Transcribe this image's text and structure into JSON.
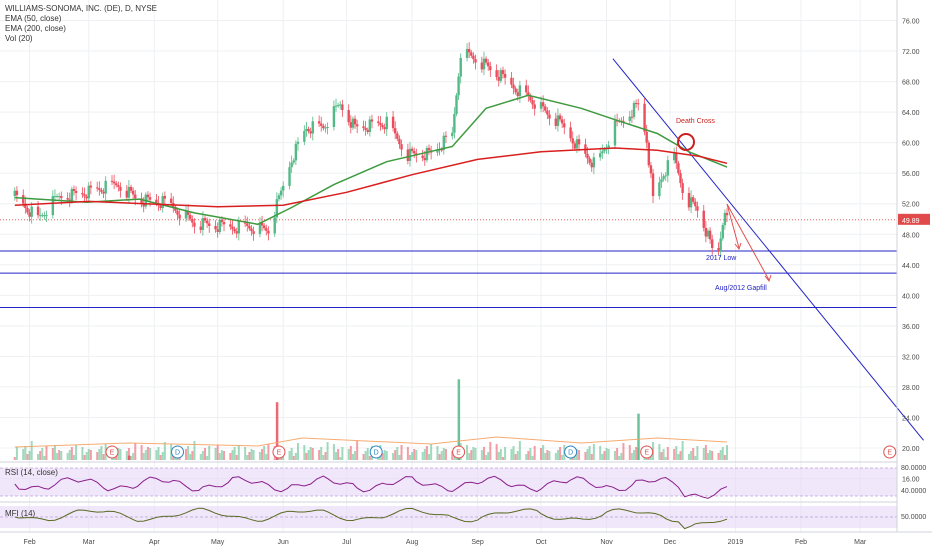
{
  "header": {
    "title": "WILLIAMS-SONOMA, INC. (DE), D, NYSE",
    "indicators": [
      "EMA (50, close)",
      "EMA (200, close)",
      "Vol (20)"
    ]
  },
  "panes": {
    "rsi_label": "RSI (14, close)",
    "mfi_label": "MFI (14)"
  },
  "annotations": {
    "death_cross": "Death Cross",
    "low_2017": "2017 Low",
    "gapfill": "Aug/2012 Gapfill"
  },
  "colors": {
    "up": "#53b987",
    "down": "#eb4d5c",
    "ema50": "#3f9a3f",
    "ema200": "#d91e1e",
    "trend": "#2323c8",
    "annotation_red": "#cc1f1f",
    "annotation_blue": "#1c1cc0",
    "rsi_band": "#e6d7f6",
    "rsi_line": "#8b1e8b",
    "price_tag": "#e04a4a"
  },
  "chart_data": {
    "type": "candlestick",
    "symbol": "WSM",
    "exchange": "NYSE",
    "interval": "D",
    "last_price": 49.89,
    "x_ticks": [
      "Feb",
      "Mar",
      "Apr",
      "May",
      "Jun",
      "Jul",
      "Aug",
      "Sep",
      "Oct",
      "Nov",
      "Dec",
      "2019",
      "Feb",
      "Mar"
    ],
    "y_ticks": [
      "76.00",
      "72.00",
      "68.00",
      "64.00",
      "60.00",
      "56.00",
      "52.00",
      "48.00",
      "44.00",
      "40.00",
      "36.00",
      "32.00",
      "28.00",
      "24.00",
      "20.00",
      "16.00"
    ],
    "ylim": [
      14,
      78
    ],
    "horizontal_levels": [
      45.8,
      42.9,
      38.4
    ],
    "trendline": {
      "from": [
        "2018-11-04",
        71
      ],
      "to": [
        "2019-03-31",
        21
      ]
    },
    "price_path": [
      [
        "2018-01-25",
        53
      ],
      [
        "2018-02-05",
        50
      ],
      [
        "2018-02-15",
        53
      ],
      [
        "2018-02-28",
        53.5
      ],
      [
        "2018-03-15",
        54.5
      ],
      [
        "2018-03-25",
        52.5
      ],
      [
        "2018-04-08",
        52
      ],
      [
        "2018-04-20",
        49.5
      ],
      [
        "2018-05-01",
        49
      ],
      [
        "2018-05-15",
        49
      ],
      [
        "2018-05-25",
        48.5
      ],
      [
        "2018-05-30",
        52.5
      ],
      [
        "2018-06-05",
        58
      ],
      [
        "2018-06-12",
        62
      ],
      [
        "2018-06-20",
        62
      ],
      [
        "2018-06-28",
        65
      ],
      [
        "2018-07-05",
        62
      ],
      [
        "2018-07-20",
        62.5
      ],
      [
        "2018-07-30",
        58.5
      ],
      [
        "2018-08-10",
        58.5
      ],
      [
        "2018-08-20",
        61
      ],
      [
        "2018-08-24",
        72
      ],
      [
        "2018-08-31",
        71
      ],
      [
        "2018-09-10",
        69
      ],
      [
        "2018-09-25",
        66
      ],
      [
        "2018-10-03",
        64
      ],
      [
        "2018-10-12",
        62
      ],
      [
        "2018-10-20",
        59
      ],
      [
        "2018-10-27",
        57
      ],
      [
        "2018-11-05",
        62
      ],
      [
        "2018-11-12",
        64
      ],
      [
        "2018-11-16",
        65
      ],
      [
        "2018-11-20",
        60.5
      ],
      [
        "2018-11-23",
        52.5
      ],
      [
        "2018-11-28",
        56
      ],
      [
        "2018-12-03",
        58
      ],
      [
        "2018-12-08",
        53
      ],
      [
        "2018-12-15",
        51
      ],
      [
        "2018-12-21",
        46
      ],
      [
        "2018-12-24",
        45.8
      ],
      [
        "2018-12-26",
        49.9
      ],
      [
        "2018-12-28",
        49.89
      ]
    ],
    "ema50": [
      [
        "2018-01-25",
        52.8
      ],
      [
        "2018-02-28",
        52.2
      ],
      [
        "2018-03-25",
        52.6
      ],
      [
        "2018-04-20",
        50.8
      ],
      [
        "2018-05-20",
        49.3
      ],
      [
        "2018-06-05",
        51.5
      ],
      [
        "2018-06-25",
        54.5
      ],
      [
        "2018-07-20",
        57.5
      ],
      [
        "2018-08-20",
        59.5
      ],
      [
        "2018-09-05",
        64.5
      ],
      [
        "2018-09-25",
        66.2
      ],
      [
        "2018-10-20",
        64.5
      ],
      [
        "2018-11-05",
        63
      ],
      [
        "2018-11-25",
        61.2
      ],
      [
        "2018-12-10",
        58.8
      ],
      [
        "2018-12-28",
        56.8
      ]
    ],
    "ema200": [
      [
        "2018-01-25",
        51.8
      ],
      [
        "2018-03-01",
        52.3
      ],
      [
        "2018-05-01",
        51.6
      ],
      [
        "2018-06-01",
        51.8
      ],
      [
        "2018-07-01",
        53.5
      ],
      [
        "2018-08-01",
        55.8
      ],
      [
        "2018-09-01",
        57.8
      ],
      [
        "2018-10-01",
        58.8
      ],
      [
        "2018-11-05",
        59.3
      ],
      [
        "2018-11-25",
        59.0
      ],
      [
        "2018-12-15",
        58.2
      ],
      [
        "2018-12-28",
        57.3
      ]
    ],
    "volume_spikes": [
      [
        "2018-05-29",
        26
      ],
      [
        "2018-08-23",
        29
      ],
      [
        "2018-11-16",
        24.5
      ],
      [
        "2018-03-20",
        19
      ]
    ],
    "earnings_markers": [
      {
        "date": "2018-03-12",
        "label": "E"
      },
      {
        "date": "2018-05-30",
        "label": "E"
      },
      {
        "date": "2018-08-23",
        "label": "E"
      },
      {
        "date": "2018-11-20",
        "label": "E"
      },
      {
        "date": "2019-03-15",
        "label": "E"
      }
    ],
    "dividend_markers": [
      {
        "date": "2018-04-12",
        "label": "D"
      },
      {
        "date": "2018-07-15",
        "label": "D"
      },
      {
        "date": "2018-10-15",
        "label": "D"
      }
    ],
    "rsi": {
      "y_ticks": [
        "80.0000",
        "40.0000"
      ],
      "last": 42
    },
    "mfi": {
      "y_ticks": [
        "50.0000"
      ],
      "last": 28
    }
  }
}
